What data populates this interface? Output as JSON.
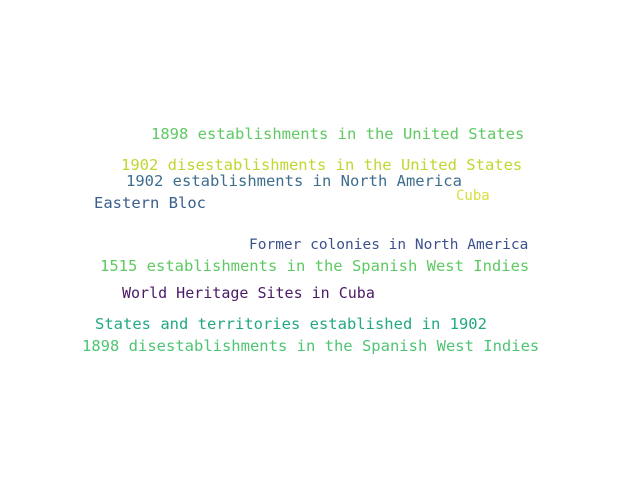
{
  "word_cloud": {
    "words": [
      {
        "text": "1898 establishments in the United States",
        "color": "#5ec962"
      },
      {
        "text": "1902 disestablishments in the United States",
        "color": "#c2d630"
      },
      {
        "text": "1902 establishments in North America",
        "color": "#3e6e8e"
      },
      {
        "text": "Eastern Bloc",
        "color": "#3a5f8c"
      },
      {
        "text": "Cuba",
        "color": "#d8e03c"
      },
      {
        "text": "Former colonies in North America",
        "color": "#3b528b"
      },
      {
        "text": "1515 establishments in the Spanish West Indies",
        "color": "#5ec962"
      },
      {
        "text": "World Heritage Sites in Cuba",
        "color": "#4b1a66"
      },
      {
        "text": "States and territories established in 1902",
        "color": "#22a884"
      },
      {
        "text": "1898 disestablishments in the Spanish West Indies",
        "color": "#4fc474"
      }
    ]
  }
}
